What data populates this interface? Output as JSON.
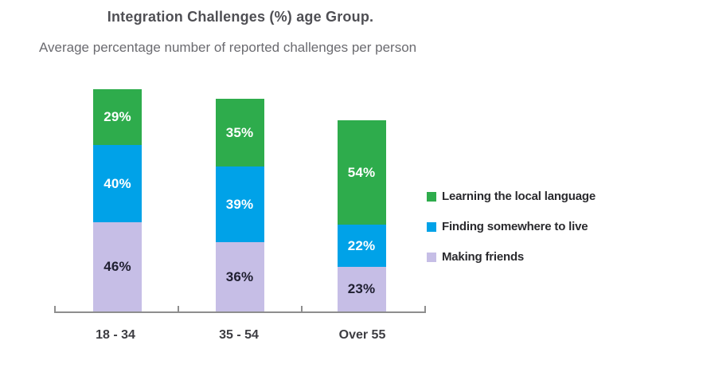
{
  "page": {
    "title": "Integration Challenges (%) age Group.",
    "subtitle": "Average percentage number of reported challenges per person"
  },
  "chart_data": {
    "type": "bar",
    "stacked": true,
    "title": "Integration Challenges (%) age Group.",
    "subtitle": "Average percentage number of reported challenges per person",
    "categories": [
      "18 - 34",
      "35 - 54",
      "Over 55"
    ],
    "series": [
      {
        "name": "Making friends",
        "color": "#c6bee6",
        "label_color": "#1f1f30",
        "values": [
          46,
          36,
          23
        ]
      },
      {
        "name": "Finding somewhere to live",
        "color": "#00a2e8",
        "label_color": "#ffffff",
        "values": [
          40,
          39,
          22
        ]
      },
      {
        "name": "Learning the local language",
        "color": "#2eac4c",
        "label_color": "#ffffff",
        "values": [
          29,
          35,
          54
        ]
      }
    ],
    "legend_order_top_to_bottom": [
      "Learning the local language",
      "Finding somewhere to live",
      "Making friends"
    ],
    "value_suffix": "%",
    "axis": {
      "grid": false,
      "y_axis_visible": false,
      "x_axis_visible": true
    },
    "legend_position": "right"
  }
}
